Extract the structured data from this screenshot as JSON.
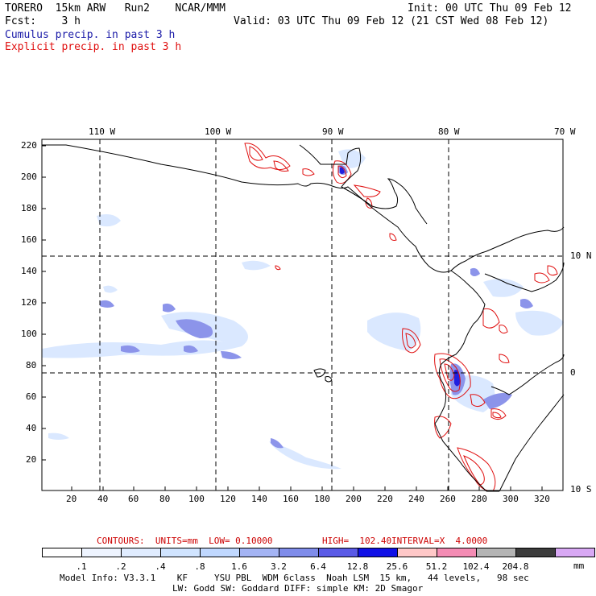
{
  "header": {
    "line1_left": "TORERO  15km ARW   Run2    NCAR/MMM",
    "line1_right": "Init: 00 UTC Thu 09 Feb 12",
    "line2_left": "Fcst:    3 h",
    "line2_right": "Valid: 03 UTC Thu 09 Feb 12 (21 CST Wed 08 Feb 12)",
    "cumulus_label": "Cumulus precip. in past 3 h",
    "explicit_label": "Explicit precip. in past 3 h",
    "cumulus_color": "#1a1aa8",
    "explicit_color": "#e01010"
  },
  "map": {
    "top_lon_labels": [
      "110 W",
      "100 W",
      "90 W",
      "80 W",
      "70 W"
    ],
    "right_lat_labels": [
      "10 N",
      "0",
      "10 S"
    ],
    "left_grid_labels": [
      "220",
      "200",
      "180",
      "160",
      "140",
      "120",
      "100",
      "80",
      "60",
      "40",
      "20"
    ],
    "bottom_grid_labels": [
      "20",
      "40",
      "60",
      "80",
      "100",
      "120",
      "140",
      "160",
      "180",
      "200",
      "220",
      "240",
      "260",
      "280",
      "300",
      "320"
    ]
  },
  "contours_line": {
    "contours": "CONTOURS:  UNITS=mm  LOW= 0.10000",
    "high": "HIGH=  102.40",
    "interval": "INTERVAL=X  4.0000",
    "color": "#cc0000"
  },
  "colorbar": {
    "colors": [
      "#ffffff",
      "#eef4ff",
      "#e0ecff",
      "#d0e4ff",
      "#c0d8ff",
      "#a4b4f4",
      "#7f8cea",
      "#5a5ae6",
      "#1010e6",
      "#ffc8c8",
      "#f48cb4",
      "#b4b4b4",
      "#3c3c3c",
      "#d8a8f4"
    ],
    "labels": [
      ".1",
      ".2",
      ".4",
      ".8",
      "1.6",
      "3.2",
      "6.4",
      "12.8",
      "25.6",
      "51.2",
      "102.4",
      "204.8"
    ],
    "unit": "mm"
  },
  "footer": {
    "line1": "Model Info: V3.3.1    KF     YSU PBL  WDM 6class  Noah LSM  15 km,   44 levels,   98 sec",
    "line2": "LW: Godd SW: Goddard DIFF: simple KM: 2D Smagor"
  }
}
